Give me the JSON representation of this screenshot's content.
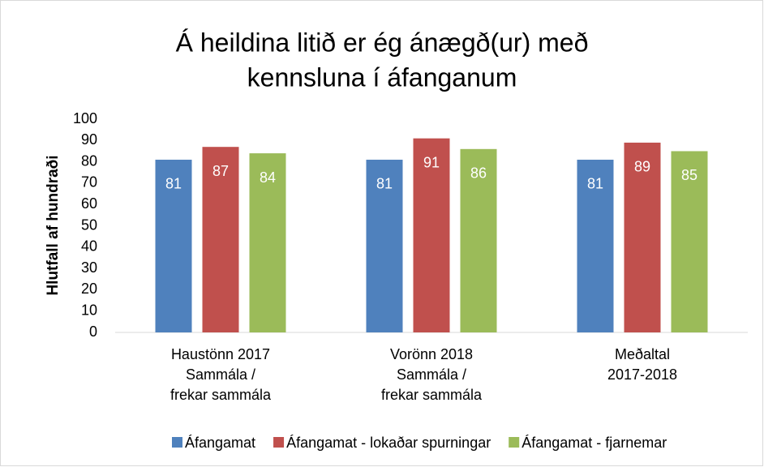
{
  "chart_data": {
    "type": "bar",
    "title": [
      "Á heildina litið er ég ánægð(ur) með",
      "kennsluna í áfanganum"
    ],
    "y_label": "Hlutfall af hundraði",
    "categories": [
      [
        "Haustönn 2017",
        "Sammála /",
        "frekar sammála"
      ],
      [
        "Vorönn 2018",
        "Sammála /",
        "frekar sammála"
      ],
      [
        "Meðaltal",
        "2017-2018"
      ]
    ],
    "series": [
      {
        "name": "Áfangamat",
        "color": "#4f81bd",
        "values": [
          81,
          81,
          81
        ]
      },
      {
        "name": "Áfangamat - lokaðar spurningar",
        "color": "#c0504d",
        "values": [
          87,
          91,
          89
        ]
      },
      {
        "name": "Áfangamat - fjarnemar",
        "color": "#9bbb59",
        "values": [
          84,
          86,
          85
        ]
      }
    ],
    "ylim": [
      0,
      100
    ],
    "yticks": [
      0,
      10,
      20,
      30,
      40,
      50,
      60,
      70,
      80,
      90,
      100
    ],
    "grid": false,
    "legend": "bottom"
  }
}
